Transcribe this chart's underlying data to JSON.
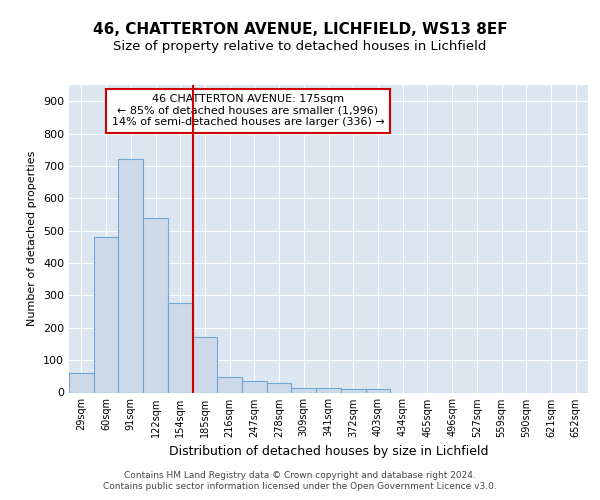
{
  "title1": "46, CHATTERTON AVENUE, LICHFIELD, WS13 8EF",
  "title2": "Size of property relative to detached houses in Lichfield",
  "xlabel": "Distribution of detached houses by size in Lichfield",
  "ylabel": "Number of detached properties",
  "categories": [
    "29sqm",
    "60sqm",
    "91sqm",
    "122sqm",
    "154sqm",
    "185sqm",
    "216sqm",
    "247sqm",
    "278sqm",
    "309sqm",
    "341sqm",
    "372sqm",
    "403sqm",
    "434sqm",
    "465sqm",
    "496sqm",
    "527sqm",
    "559sqm",
    "590sqm",
    "621sqm",
    "652sqm"
  ],
  "values": [
    60,
    480,
    720,
    540,
    275,
    170,
    47,
    35,
    30,
    15,
    13,
    10,
    10,
    0,
    0,
    0,
    0,
    0,
    0,
    0,
    0
  ],
  "bar_color": "#cdd9e8",
  "bar_edge_color": "#6fa8d5",
  "ref_line_color": "#cc0000",
  "ref_line_xidx": 4.5,
  "annotation_line1": "46 CHATTERTON AVENUE: 175sqm",
  "annotation_line2": "← 85% of detached houses are smaller (1,996)",
  "annotation_line3": "14% of semi-detached houses are larger (336) →",
  "annotation_box_color": "#ffffff",
  "annotation_box_edge": "#cc0000",
  "ylim": [
    0,
    950
  ],
  "yticks": [
    0,
    100,
    200,
    300,
    400,
    500,
    600,
    700,
    800,
    900
  ],
  "footer1": "Contains HM Land Registry data © Crown copyright and database right 2024.",
  "footer2": "Contains public sector information licensed under the Open Government Licence v3.0.",
  "bg_color": "#dce6f1",
  "fig_bg": "#ffffff",
  "title1_fontsize": 11,
  "title2_fontsize": 9.5
}
